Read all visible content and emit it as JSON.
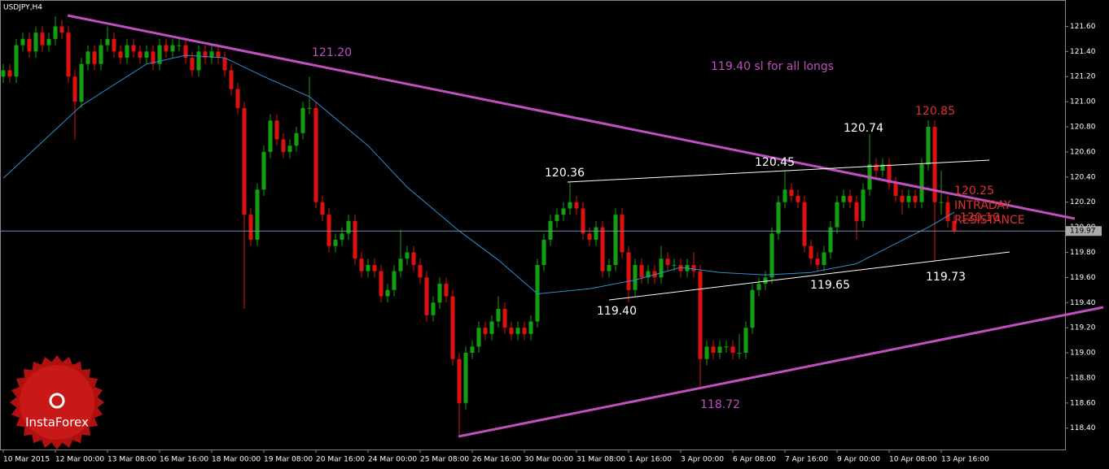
{
  "chart_data": {
    "type": "candlestick",
    "title": "USDJPY,H4",
    "xlim": [
      -0.5,
      163
    ],
    "ylim": [
      118.23,
      121.81
    ],
    "yticks": [
      {
        "value": 121.6,
        "label": "121.60"
      },
      {
        "value": 121.4,
        "label": "121.40"
      },
      {
        "value": 121.2,
        "label": "121.20"
      },
      {
        "value": 121.0,
        "label": "121.00"
      },
      {
        "value": 120.8,
        "label": "120.80"
      },
      {
        "value": 120.6,
        "label": "120.60"
      },
      {
        "value": 120.4,
        "label": "120.40"
      },
      {
        "value": 120.2,
        "label": "120.20"
      },
      {
        "value": 120.0,
        "label": "120.00"
      },
      {
        "value": 119.8,
        "label": "119.80"
      },
      {
        "value": 119.6,
        "label": "119.60"
      },
      {
        "value": 119.4,
        "label": "119.40"
      },
      {
        "value": 119.2,
        "label": "119.20"
      },
      {
        "value": 119.0,
        "label": "119.00"
      },
      {
        "value": 118.8,
        "label": "118.80"
      },
      {
        "value": 118.6,
        "label": "118.60"
      },
      {
        "value": 118.4,
        "label": "118.40"
      }
    ],
    "xticks": [
      {
        "value": 0,
        "label": "10 Mar 2015"
      },
      {
        "value": 8,
        "label": "12 Mar 00:00"
      },
      {
        "value": 16,
        "label": "13 Mar 08:00"
      },
      {
        "value": 24,
        "label": "16 Mar 16:00"
      },
      {
        "value": 32,
        "label": "18 Mar 00:00"
      },
      {
        "value": 40,
        "label": "19 Mar 08:00"
      },
      {
        "value": 48,
        "label": "20 Mar 16:00"
      },
      {
        "value": 56,
        "label": "24 Mar 00:00"
      },
      {
        "value": 64,
        "label": "25 Mar 08:00"
      },
      {
        "value": 72,
        "label": "26 Mar 16:00"
      },
      {
        "value": 80,
        "label": "30 Mar 00:00"
      },
      {
        "value": 88,
        "label": "31 Mar 08:00"
      },
      {
        "value": 96,
        "label": "1 Apr 16:00"
      },
      {
        "value": 104,
        "label": "3 Apr 00:00"
      },
      {
        "value": 112,
        "label": "6 Apr 08:00"
      },
      {
        "value": 120,
        "label": "7 Apr 16:00"
      },
      {
        "value": 128,
        "label": "9 Apr 00:00"
      },
      {
        "value": 136,
        "label": "10 Apr 08:00"
      },
      {
        "value": 144,
        "label": "13 Apr 16:00"
      }
    ],
    "up_color": "#12a012",
    "down_color": "#e01010",
    "ohlc": [
      [
        121.2,
        121.3,
        121.15,
        121.25
      ],
      [
        121.25,
        121.3,
        121.15,
        121.2
      ],
      [
        121.2,
        121.5,
        121.15,
        121.45
      ],
      [
        121.45,
        121.55,
        121.4,
        121.5
      ],
      [
        121.5,
        121.55,
        121.35,
        121.4
      ],
      [
        121.4,
        121.6,
        121.35,
        121.55
      ],
      [
        121.55,
        121.6,
        121.4,
        121.45
      ],
      [
        121.45,
        121.55,
        121.4,
        121.5
      ],
      [
        121.5,
        121.68,
        121.45,
        121.6
      ],
      [
        121.6,
        121.65,
        121.5,
        121.55
      ],
      [
        121.55,
        121.6,
        121.15,
        121.2
      ],
      [
        121.2,
        121.25,
        120.7,
        121.0
      ],
      [
        121.0,
        121.35,
        120.95,
        121.3
      ],
      [
        121.3,
        121.45,
        121.25,
        121.4
      ],
      [
        121.4,
        121.45,
        121.25,
        121.3
      ],
      [
        121.3,
        121.5,
        121.25,
        121.45
      ],
      [
        121.45,
        121.6,
        121.4,
        121.5
      ],
      [
        121.5,
        121.55,
        121.35,
        121.4
      ],
      [
        121.4,
        121.45,
        121.3,
        121.35
      ],
      [
        121.35,
        121.5,
        121.3,
        121.45
      ],
      [
        121.45,
        121.5,
        121.35,
        121.4
      ],
      [
        121.4,
        121.45,
        121.3,
        121.35
      ],
      [
        121.35,
        121.45,
        121.3,
        121.4
      ],
      [
        121.4,
        121.45,
        121.25,
        121.3
      ],
      [
        121.3,
        121.5,
        121.25,
        121.45
      ],
      [
        121.45,
        121.5,
        121.35,
        121.4
      ],
      [
        121.4,
        121.5,
        121.35,
        121.45
      ],
      [
        121.45,
        121.5,
        121.4,
        121.45
      ],
      [
        121.45,
        121.5,
        121.3,
        121.35
      ],
      [
        121.35,
        121.4,
        121.2,
        121.25
      ],
      [
        121.25,
        121.45,
        121.2,
        121.4
      ],
      [
        121.4,
        121.45,
        121.3,
        121.35
      ],
      [
        121.35,
        121.45,
        121.3,
        121.4
      ],
      [
        121.4,
        121.45,
        121.3,
        121.35
      ],
      [
        121.35,
        121.4,
        121.2,
        121.25
      ],
      [
        121.25,
        121.3,
        121.05,
        121.1
      ],
      [
        121.1,
        121.15,
        120.9,
        120.95
      ],
      [
        120.95,
        121.0,
        119.35,
        120.1
      ],
      [
        120.1,
        120.15,
        119.85,
        119.9
      ],
      [
        119.9,
        120.35,
        119.85,
        120.3
      ],
      [
        120.3,
        120.65,
        120.25,
        120.6
      ],
      [
        120.6,
        120.9,
        120.55,
        120.85
      ],
      [
        120.85,
        120.9,
        120.65,
        120.7
      ],
      [
        120.7,
        120.75,
        120.55,
        120.6
      ],
      [
        120.6,
        120.7,
        120.55,
        120.65
      ],
      [
        120.65,
        120.8,
        120.6,
        120.75
      ],
      [
        120.75,
        121.0,
        120.7,
        120.95
      ],
      [
        120.95,
        121.2,
        120.9,
        120.95
      ],
      [
        120.95,
        121.0,
        120.15,
        120.2
      ],
      [
        120.2,
        120.25,
        120.05,
        120.1
      ],
      [
        120.1,
        120.15,
        119.8,
        119.85
      ],
      [
        119.85,
        119.95,
        119.8,
        119.9
      ],
      [
        119.9,
        120.0,
        119.85,
        119.95
      ],
      [
        119.95,
        120.1,
        119.9,
        120.05
      ],
      [
        120.05,
        120.1,
        119.7,
        119.75
      ],
      [
        119.75,
        119.8,
        119.6,
        119.65
      ],
      [
        119.65,
        119.75,
        119.6,
        119.7
      ],
      [
        119.7,
        119.75,
        119.6,
        119.65
      ],
      [
        119.65,
        119.7,
        119.4,
        119.45
      ],
      [
        119.45,
        119.55,
        119.4,
        119.5
      ],
      [
        119.5,
        119.7,
        119.45,
        119.65
      ],
      [
        119.65,
        119.98,
        119.6,
        119.75
      ],
      [
        119.75,
        119.85,
        119.7,
        119.8
      ],
      [
        119.8,
        119.85,
        119.65,
        119.7
      ],
      [
        119.7,
        119.75,
        119.55,
        119.6
      ],
      [
        119.6,
        119.65,
        119.25,
        119.3
      ],
      [
        119.3,
        119.45,
        119.25,
        119.4
      ],
      [
        119.4,
        119.6,
        119.35,
        119.55
      ],
      [
        119.55,
        119.6,
        119.4,
        119.45
      ],
      [
        119.45,
        119.5,
        118.9,
        118.95
      ],
      [
        118.95,
        119.0,
        118.35,
        118.6
      ],
      [
        118.6,
        119.05,
        118.55,
        119.0
      ],
      [
        119.0,
        119.1,
        118.95,
        119.05
      ],
      [
        119.05,
        119.25,
        119.0,
        119.2
      ],
      [
        119.2,
        119.25,
        119.1,
        119.15
      ],
      [
        119.15,
        119.3,
        119.1,
        119.25
      ],
      [
        119.25,
        119.45,
        119.2,
        119.35
      ],
      [
        119.35,
        119.4,
        119.15,
        119.2
      ],
      [
        119.2,
        119.25,
        119.1,
        119.15
      ],
      [
        119.15,
        119.25,
        119.1,
        119.2
      ],
      [
        119.2,
        119.25,
        119.1,
        119.15
      ],
      [
        119.15,
        119.3,
        119.1,
        119.25
      ],
      [
        119.25,
        119.75,
        119.2,
        119.7
      ],
      [
        119.7,
        119.95,
        119.65,
        119.9
      ],
      [
        119.9,
        120.1,
        119.85,
        120.05
      ],
      [
        120.05,
        120.15,
        120.0,
        120.1
      ],
      [
        120.1,
        120.2,
        120.05,
        120.15
      ],
      [
        120.15,
        120.36,
        120.1,
        120.2
      ],
      [
        120.2,
        120.25,
        120.1,
        120.15
      ],
      [
        120.15,
        120.2,
        119.9,
        119.95
      ],
      [
        119.95,
        120.0,
        119.85,
        119.9
      ],
      [
        119.9,
        120.05,
        119.85,
        120.0
      ],
      [
        120.0,
        120.05,
        119.6,
        119.65
      ],
      [
        119.65,
        119.75,
        119.6,
        119.7
      ],
      [
        119.7,
        120.15,
        119.65,
        120.1
      ],
      [
        120.1,
        120.15,
        119.75,
        119.8
      ],
      [
        119.8,
        119.85,
        119.4,
        119.5
      ],
      [
        119.5,
        119.75,
        119.45,
        119.7
      ],
      [
        119.7,
        119.75,
        119.55,
        119.6
      ],
      [
        119.6,
        119.7,
        119.55,
        119.65
      ],
      [
        119.65,
        119.7,
        119.55,
        119.6
      ],
      [
        119.6,
        119.85,
        119.55,
        119.75
      ],
      [
        119.75,
        119.8,
        119.65,
        119.7
      ],
      [
        119.7,
        119.75,
        119.65,
        119.7
      ],
      [
        119.7,
        119.75,
        119.6,
        119.65
      ],
      [
        119.65,
        119.75,
        119.6,
        119.7
      ],
      [
        119.7,
        119.8,
        119.6,
        119.65
      ],
      [
        119.65,
        119.7,
        118.72,
        118.95
      ],
      [
        118.95,
        119.1,
        118.9,
        119.05
      ],
      [
        119.05,
        119.1,
        118.95,
        119.0
      ],
      [
        119.0,
        119.1,
        118.95,
        119.05
      ],
      [
        119.05,
        119.1,
        119.0,
        119.05
      ],
      [
        119.05,
        119.1,
        118.95,
        119.0
      ],
      [
        119.0,
        119.15,
        118.95,
        119.0
      ],
      [
        119.0,
        119.25,
        118.95,
        119.2
      ],
      [
        119.2,
        119.55,
        119.15,
        119.5
      ],
      [
        119.5,
        119.6,
        119.45,
        119.55
      ],
      [
        119.55,
        119.65,
        119.5,
        119.6
      ],
      [
        119.6,
        120.0,
        119.55,
        119.95
      ],
      [
        119.95,
        120.25,
        119.9,
        120.2
      ],
      [
        120.2,
        120.45,
        120.15,
        120.3
      ],
      [
        120.3,
        120.35,
        120.2,
        120.25
      ],
      [
        120.25,
        120.3,
        120.15,
        120.2
      ],
      [
        120.2,
        120.25,
        119.8,
        119.85
      ],
      [
        119.85,
        119.9,
        119.7,
        119.75
      ],
      [
        119.75,
        119.8,
        119.65,
        119.7
      ],
      [
        119.7,
        119.85,
        119.65,
        119.8
      ],
      [
        119.8,
        120.05,
        119.75,
        120.0
      ],
      [
        120.0,
        120.25,
        119.95,
        120.2
      ],
      [
        120.2,
        120.3,
        120.15,
        120.25
      ],
      [
        120.25,
        120.3,
        120.15,
        120.2
      ],
      [
        120.2,
        120.25,
        119.9,
        120.05
      ],
      [
        120.05,
        120.35,
        120.0,
        120.3
      ],
      [
        120.3,
        120.74,
        120.25,
        120.5
      ],
      [
        120.5,
        120.55,
        120.4,
        120.45
      ],
      [
        120.45,
        120.55,
        120.4,
        120.5
      ],
      [
        120.5,
        120.55,
        120.3,
        120.35
      ],
      [
        120.35,
        120.4,
        120.2,
        120.25
      ],
      [
        120.25,
        120.3,
        120.1,
        120.2
      ],
      [
        120.2,
        120.3,
        120.15,
        120.25
      ],
      [
        120.25,
        120.3,
        120.15,
        120.2
      ],
      [
        120.2,
        120.55,
        120.15,
        120.5
      ],
      [
        120.5,
        120.85,
        120.45,
        120.8
      ],
      [
        120.8,
        120.85,
        119.73,
        120.2
      ],
      [
        120.2,
        120.45,
        120.1,
        120.2
      ],
      [
        120.2,
        120.25,
        120.0,
        120.05
      ],
      [
        120.05,
        120.1,
        119.95,
        119.97
      ]
    ],
    "moving_average": {
      "color": "#2f8fd0",
      "x": [
        0,
        12,
        22,
        28,
        34,
        40,
        47,
        56,
        62,
        70,
        76,
        82,
        90,
        97,
        104,
        110,
        117,
        124,
        131,
        137,
        142,
        146
      ],
      "values": [
        120.39,
        120.97,
        121.3,
        121.37,
        121.35,
        121.2,
        121.04,
        120.65,
        120.32,
        119.97,
        119.74,
        119.47,
        119.51,
        119.58,
        119.68,
        119.64,
        119.62,
        119.64,
        119.71,
        119.87,
        120.0,
        120.12
      ]
    },
    "price_line": 119.97,
    "annotations": [
      "121.20",
      "119.40 sl for all longs",
      "120.36",
      "120.45",
      "120.74",
      "120.85",
      "120.25 INTRADAY RESISTANCE",
      "120.10",
      "119.40",
      "119.65",
      "119.73",
      "118.72"
    ],
    "watermark": "InstaForex"
  }
}
